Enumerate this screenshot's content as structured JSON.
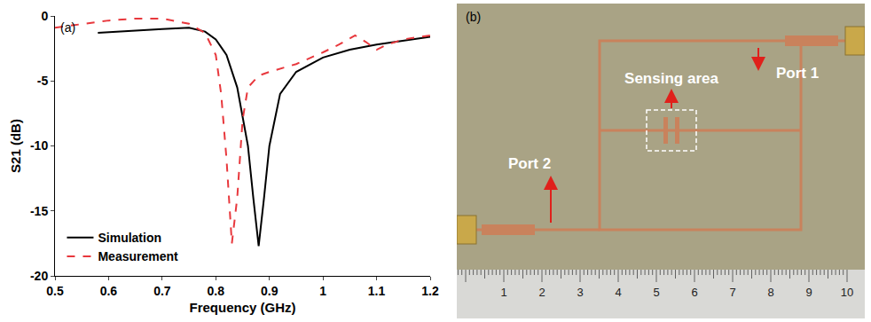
{
  "chart_data": {
    "type": "line",
    "annotations": [
      "(a)"
    ],
    "x_label": "Frequency (GHz)",
    "y_label": "S21 (dB)",
    "xlim": [
      0.5,
      1.2
    ],
    "xticks": [
      0.5,
      0.6,
      0.7,
      0.8,
      0.9,
      1,
      1.1,
      1.2
    ],
    "ylim": [
      -20,
      0
    ],
    "yticks": [
      -20,
      -15,
      -10,
      -5,
      0
    ],
    "grid": false,
    "legend": "lower left",
    "series": [
      {
        "name": "Simulation",
        "color": "#000000",
        "line_style": "solid",
        "x": [
          0.58,
          0.65,
          0.7,
          0.75,
          0.78,
          0.8,
          0.82,
          0.84,
          0.86,
          0.87,
          0.88,
          0.89,
          0.9,
          0.92,
          0.95,
          1.0,
          1.05,
          1.1,
          1.15,
          1.2
        ],
        "values": [
          -1.3,
          -1.1,
          -1.0,
          -0.9,
          -1.2,
          -1.8,
          -3,
          -5.5,
          -10,
          -14,
          -17.7,
          -14,
          -10,
          -6,
          -4.3,
          -3.2,
          -2.6,
          -2.2,
          -1.9,
          -1.6
        ]
      },
      {
        "name": "Measurement",
        "color": "#e8383d",
        "line_style": "dashed",
        "x": [
          0.5,
          0.55,
          0.6,
          0.65,
          0.7,
          0.75,
          0.78,
          0.8,
          0.81,
          0.82,
          0.83,
          0.84,
          0.85,
          0.86,
          0.88,
          0.9,
          0.95,
          1.0,
          1.03,
          1.06,
          1.08,
          1.1,
          1.12,
          1.15,
          1.2
        ],
        "values": [
          -0.9,
          -0.6,
          -0.35,
          -0.2,
          -0.2,
          -0.6,
          -1.3,
          -3,
          -6,
          -11,
          -17.5,
          -14,
          -8,
          -5.5,
          -4.6,
          -4.3,
          -3.7,
          -2.8,
          -2.2,
          -1.5,
          -2,
          -2.6,
          -2.2,
          -1.8,
          -1.5
        ]
      }
    ]
  },
  "photo": {
    "panel": "(b)",
    "labels": [
      "Sensing area",
      "Port 1",
      "Port 2"
    ],
    "ruler": [
      1,
      2,
      3,
      4,
      5,
      6,
      7,
      8,
      9,
      10
    ]
  }
}
